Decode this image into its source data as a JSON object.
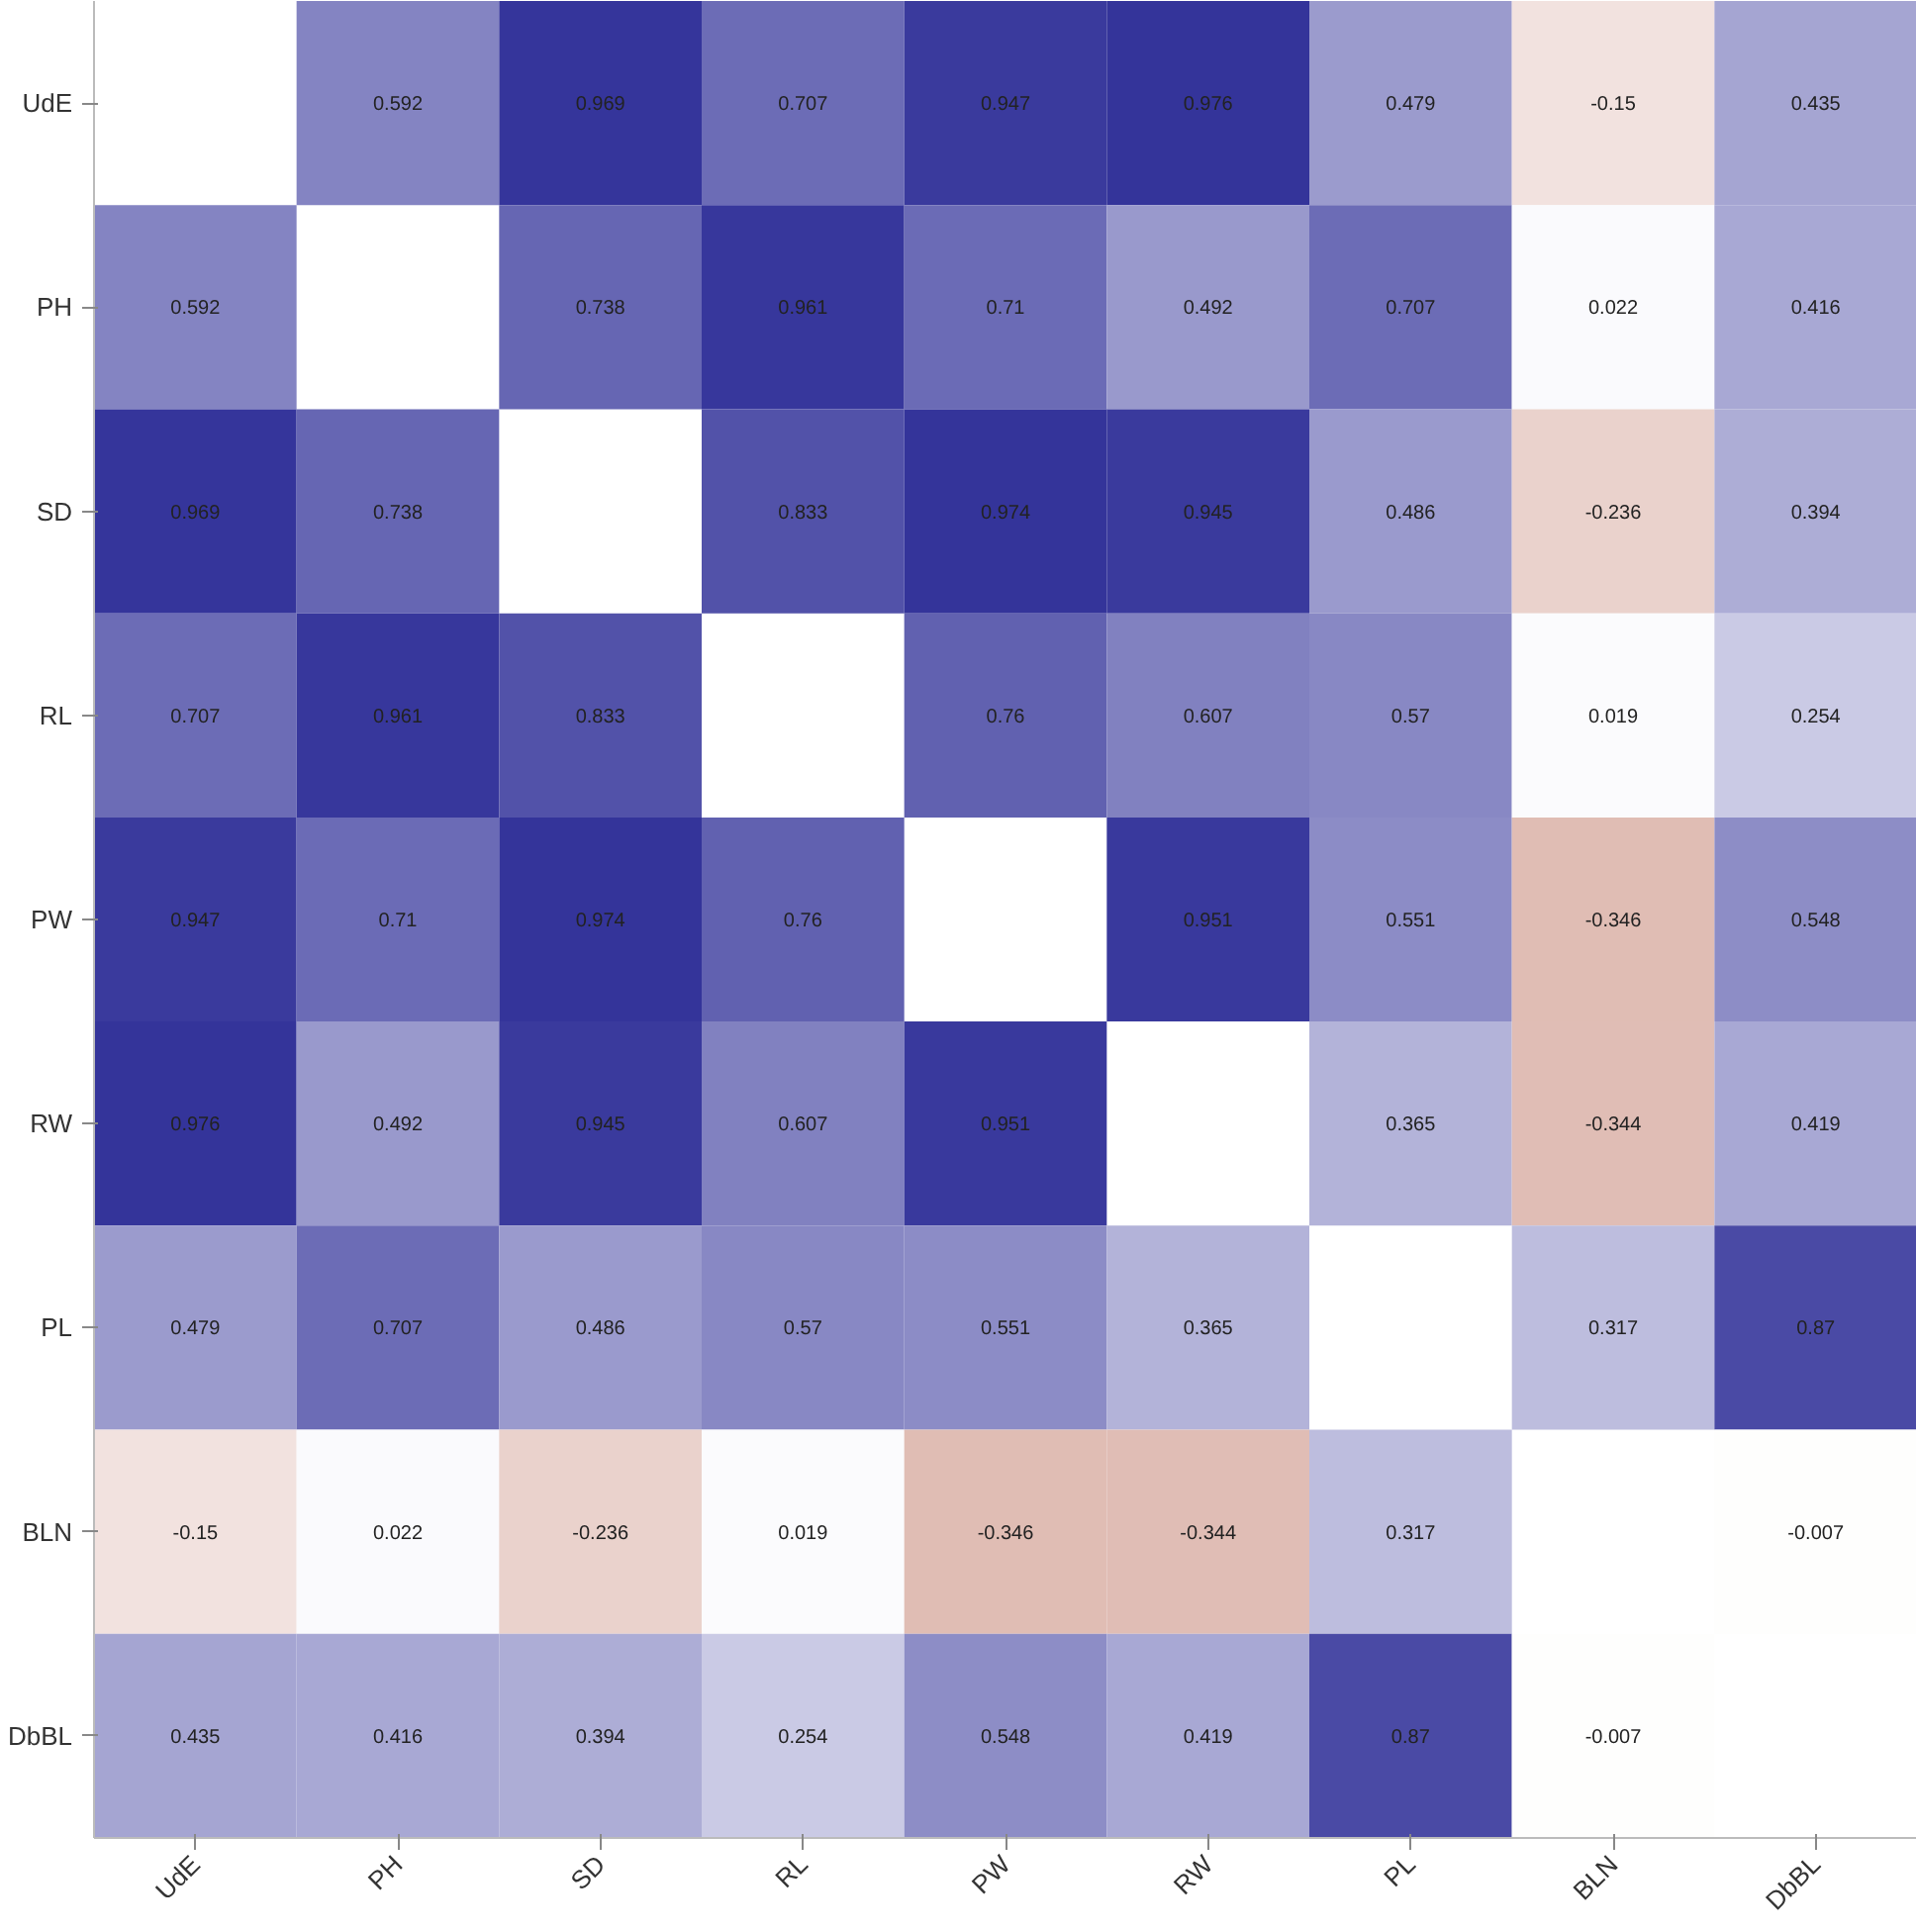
{
  "chart_data": {
    "type": "heatmap",
    "categories": [
      "UdE",
      "PH",
      "SD",
      "RL",
      "PW",
      "RW",
      "PL",
      "BLN",
      "DbBL"
    ],
    "y_categories": [
      "UdE",
      "PH",
      "SD",
      "RL",
      "PW",
      "RW",
      "PL",
      "BLN",
      "DbBL"
    ],
    "cells": [
      [
        null,
        0.592,
        0.969,
        0.707,
        0.947,
        0.976,
        0.479,
        -0.15,
        0.435
      ],
      [
        0.592,
        null,
        0.738,
        0.961,
        0.71,
        0.492,
        0.707,
        0.022,
        0.416
      ],
      [
        0.969,
        0.738,
        null,
        0.833,
        0.974,
        0.945,
        0.486,
        -0.236,
        0.394
      ],
      [
        0.707,
        0.961,
        0.833,
        null,
        0.76,
        0.607,
        0.57,
        0.019,
        0.254
      ],
      [
        0.947,
        0.71,
        0.974,
        0.76,
        null,
        0.951,
        0.551,
        -0.346,
        0.548
      ],
      [
        0.976,
        0.492,
        0.945,
        0.607,
        0.951,
        null,
        0.365,
        -0.344,
        0.419
      ],
      [
        0.479,
        0.707,
        0.486,
        0.57,
        0.551,
        0.365,
        null,
        0.317,
        0.87
      ],
      [
        -0.15,
        0.022,
        -0.236,
        0.019,
        -0.346,
        -0.344,
        0.317,
        null,
        -0.007
      ],
      [
        0.435,
        0.416,
        0.394,
        0.254,
        0.548,
        0.419,
        0.87,
        -0.007,
        null
      ]
    ],
    "colors": [
      "#a8452c",
      "#ffffff",
      "#34349a"
    ],
    "data_labels": true,
    "grid": false
  }
}
